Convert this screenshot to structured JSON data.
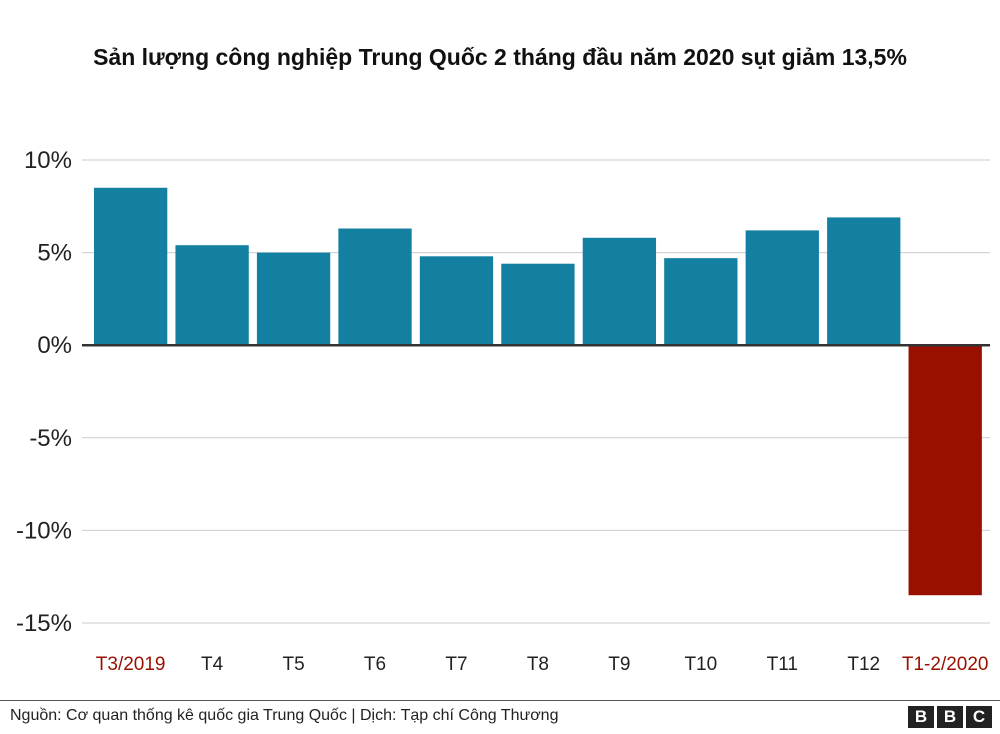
{
  "title": "Sản lượng công nghiệp Trung Quốc 2 tháng đầu năm 2020 sụt giảm 13,5%",
  "source": "Nguồn: Cơ quan thống kê quốc gia Trung Quốc | Dịch: Tạp chí Công Thương",
  "logo": [
    "B",
    "B",
    "C"
  ],
  "colors": {
    "positive": "#1380A1",
    "negative": "#990F00",
    "highlight_label": "#990F00",
    "grid": "#cbcbcb",
    "zero_line": "#333333"
  },
  "chart_data": {
    "type": "bar",
    "title": "Sản lượng công nghiệp Trung Quốc 2 tháng đầu năm 2020 sụt giảm 13,5%",
    "categories": [
      "T3/2019",
      "T4",
      "T5",
      "T6",
      "T7",
      "T8",
      "T9",
      "T10",
      "T11",
      "T12",
      "T1-2/2020"
    ],
    "values": [
      8.5,
      5.4,
      5.0,
      6.3,
      4.8,
      4.4,
      5.8,
      4.7,
      6.2,
      6.9,
      -13.5
    ],
    "highlight_categories": [
      "T3/2019",
      "T1-2/2020"
    ],
    "xlabel": "",
    "ylabel": "",
    "ylim": [
      -15,
      10
    ],
    "yticks": [
      10,
      5,
      0,
      -5,
      -10,
      -15
    ],
    "ytick_labels": [
      "10%",
      "5%",
      "0%",
      "-5%",
      "-10%",
      "-15%"
    ],
    "grid": true,
    "legend": "none"
  }
}
